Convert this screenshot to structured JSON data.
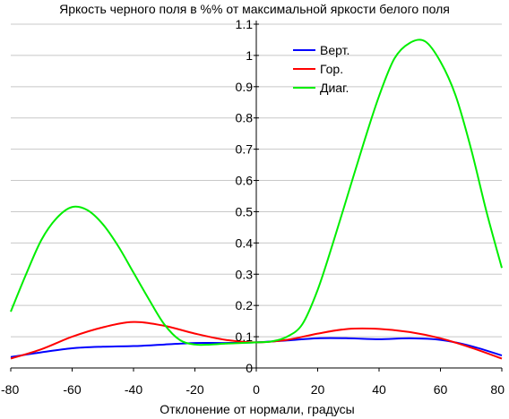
{
  "chart_data": {
    "type": "line",
    "title": "Яркость черного поля в %% от максимальной яркости белого поля",
    "xlabel": "Отклонение от нормали, градусы",
    "ylabel": "",
    "xlim": [
      -80,
      80
    ],
    "ylim": [
      0,
      1.1
    ],
    "x_ticks": [
      "-80",
      "-60",
      "-40",
      "-20",
      "0",
      "20",
      "40",
      "60",
      "80"
    ],
    "y_ticks": [
      "0",
      "0.1",
      "0.2",
      "0.3",
      "0.4",
      "0.5",
      "0.6",
      "0.7",
      "0.8",
      "0.9",
      "1",
      "1.1"
    ],
    "grid": "horizontal",
    "legend_position": "top-right",
    "series": [
      {
        "name": "Верт.",
        "color": "#0000ff",
        "x": [
          -80,
          -70,
          -60,
          -50,
          -40,
          -30,
          -20,
          -10,
          0,
          10,
          20,
          30,
          40,
          50,
          60,
          70,
          80
        ],
        "y": [
          0.035,
          0.05,
          0.063,
          0.068,
          0.07,
          0.075,
          0.08,
          0.08,
          0.082,
          0.088,
          0.095,
          0.095,
          0.092,
          0.095,
          0.09,
          0.07,
          0.04
        ]
      },
      {
        "name": "Гор.",
        "color": "#ff0000",
        "x": [
          -80,
          -70,
          -60,
          -50,
          -40,
          -30,
          -20,
          -10,
          0,
          10,
          20,
          30,
          40,
          50,
          60,
          70,
          80
        ],
        "y": [
          0.03,
          0.06,
          0.1,
          0.13,
          0.147,
          0.135,
          0.11,
          0.09,
          0.082,
          0.09,
          0.11,
          0.125,
          0.125,
          0.115,
          0.095,
          0.065,
          0.03
        ]
      },
      {
        "name": "Диаг.",
        "color": "#00ee00",
        "x": [
          -80,
          -75,
          -70,
          -65,
          -60,
          -55,
          -50,
          -45,
          -40,
          -35,
          -30,
          -25,
          -20,
          -15,
          -10,
          -5,
          0,
          5,
          10,
          15,
          20,
          25,
          30,
          35,
          40,
          45,
          50,
          55,
          60,
          65,
          70,
          75,
          80
        ],
        "y": [
          0.18,
          0.3,
          0.41,
          0.48,
          0.515,
          0.505,
          0.46,
          0.39,
          0.305,
          0.22,
          0.14,
          0.09,
          0.075,
          0.075,
          0.078,
          0.08,
          0.082,
          0.085,
          0.1,
          0.14,
          0.25,
          0.4,
          0.56,
          0.72,
          0.87,
          0.99,
          1.04,
          1.045,
          0.98,
          0.87,
          0.7,
          0.5,
          0.32
        ]
      }
    ]
  }
}
